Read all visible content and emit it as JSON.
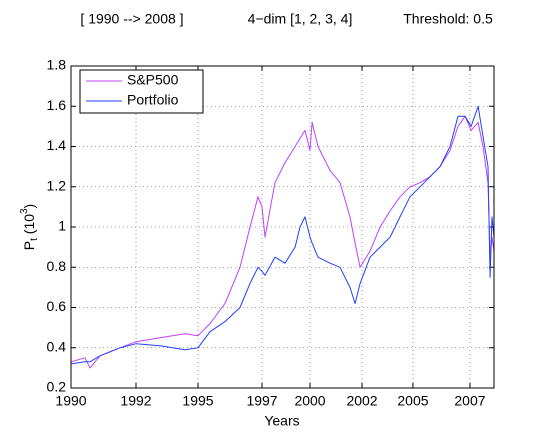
{
  "chart_data": {
    "type": "line",
    "header": [
      "[ 1990 --> 2008 ]",
      "4−dim [1, 2, 3, 4]",
      "Threshold: 0.5"
    ],
    "xlabel": "Years",
    "ylabel": {
      "base": "P",
      "sub": "t",
      "mid": " (10",
      "sup": "3",
      "end": ")"
    },
    "x": [
      0,
      157,
      213,
      326,
      550,
      730,
      999,
      1280,
      1426,
      1561,
      1729,
      1898,
      2010,
      2100,
      2145,
      2179,
      2291,
      2403,
      2516,
      2572,
      2628,
      2684,
      2707,
      2774,
      2909,
      3021,
      3133,
      3190,
      3246,
      3358,
      3471,
      3583,
      3695,
      3807,
      3920,
      4032,
      4144,
      4256,
      4346,
      4425,
      4493,
      4571,
      4627,
      4683,
      4706,
      4728,
      4750
    ],
    "series": [
      {
        "name": "S&P500",
        "color": "#c040ff",
        "values": [
          0.33,
          0.35,
          0.3,
          0.36,
          0.4,
          0.43,
          0.45,
          0.47,
          0.46,
          0.52,
          0.62,
          0.8,
          1.0,
          1.15,
          1.1,
          0.95,
          1.22,
          1.32,
          1.4,
          1.44,
          1.48,
          1.38,
          1.52,
          1.4,
          1.28,
          1.22,
          1.05,
          0.92,
          0.8,
          0.88,
          1.0,
          1.08,
          1.15,
          1.2,
          1.22,
          1.25,
          1.3,
          1.38,
          1.5,
          1.55,
          1.48,
          1.52,
          1.4,
          1.22,
          0.85,
          0.95,
          0.88
        ]
      },
      {
        "name": "Portfolio",
        "color": "#2040ff",
        "values": [
          0.32,
          0.33,
          0.33,
          0.36,
          0.4,
          0.42,
          0.41,
          0.39,
          0.4,
          0.48,
          0.53,
          0.6,
          0.72,
          0.8,
          0.78,
          0.76,
          0.85,
          0.82,
          0.9,
          1.0,
          1.05,
          0.95,
          0.92,
          0.85,
          0.82,
          0.8,
          0.7,
          0.62,
          0.72,
          0.85,
          0.9,
          0.95,
          1.05,
          1.15,
          1.2,
          1.25,
          1.3,
          1.4,
          1.55,
          1.55,
          1.5,
          1.6,
          1.45,
          1.3,
          0.75,
          1.05,
          0.95
        ]
      }
    ],
    "xlim": [
      0,
      4750
    ],
    "xticks": [
      {
        "value": 0,
        "label": "1990"
      },
      {
        "value": 730,
        "label": "1992"
      },
      {
        "value": 1426,
        "label": "1995"
      },
      {
        "value": 2145,
        "label": "1997"
      },
      {
        "value": 2684,
        "label": "2000"
      },
      {
        "value": 3268,
        "label": "2002"
      },
      {
        "value": 3840,
        "label": "2005"
      },
      {
        "value": 4480,
        "label": "2007"
      }
    ],
    "ylim": [
      0.2,
      1.8
    ],
    "yticks": [
      0.2,
      0.4,
      0.6,
      0.8,
      1,
      1.2,
      1.4,
      1.6,
      1.8
    ],
    "grid": true,
    "legend": "upper-left"
  }
}
